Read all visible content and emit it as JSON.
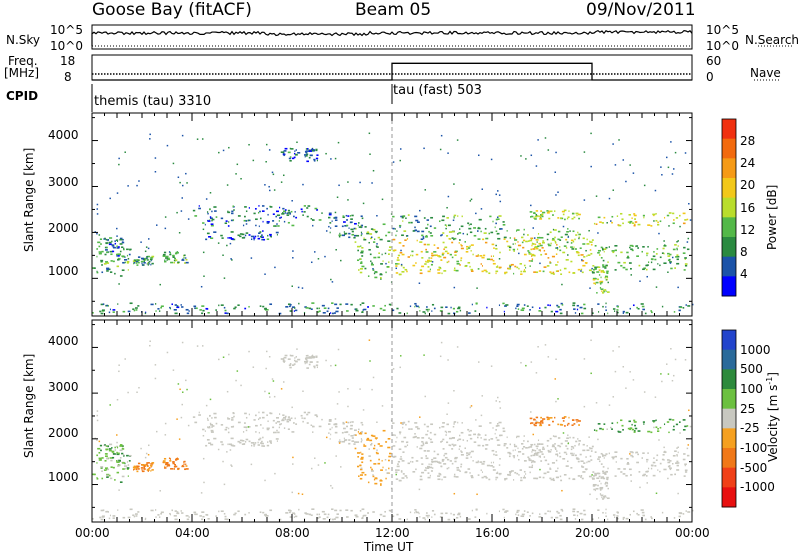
{
  "header": {
    "station": "Goose Bay (fitACF)",
    "beam": "Beam 05",
    "date": "09/Nov/2011"
  },
  "top_panels": {
    "nsky_label": "N.Sky",
    "nsky_ticks": [
      "10^5",
      "10^0"
    ],
    "nsearch_label": "N.Search",
    "nsearch_ticks": [
      "10^5",
      "10^0"
    ],
    "freq_label": "Freq.",
    "freq_unit": "[MHz]",
    "freq_ticks": [
      "18",
      "8"
    ],
    "nave_label": "Nave",
    "nave_ticks": [
      "60",
      "0"
    ],
    "cpid_label": "CPID",
    "cpid_segments": [
      {
        "name": "themis (tau)",
        "id": "3310",
        "start_hour": 0
      },
      {
        "name": "tau (fast)",
        "id": "503",
        "start_hour": 12
      }
    ]
  },
  "panel_power": {
    "ylabel": "Slant Range [km]",
    "yticks": [
      "4000",
      "3000",
      "2000",
      "1000"
    ],
    "colorbar_label": "Power [dB]",
    "colorbar_ticks": [
      "28",
      "24",
      "20",
      "16",
      "12",
      "8",
      "4"
    ],
    "colors": [
      "#0000ff",
      "#1b53a8",
      "#2a8a40",
      "#53b848",
      "#b9dd2c",
      "#f2c81a",
      "#f59a16",
      "#f26a0e",
      "#f03010"
    ]
  },
  "panel_velocity": {
    "ylabel": "Slant Range [km]",
    "yticks": [
      "4000",
      "3000",
      "2000",
      "1000"
    ],
    "colorbar_label": "Velocity [m s^-1]",
    "colorbar_ticks": [
      "1000",
      "500",
      "100",
      "25",
      "-25",
      "-100",
      "-500",
      "-1000"
    ],
    "colors": [
      "#2244cc",
      "#2a6a9a",
      "#2d8a3c",
      "#6cc040",
      "#c8c8c0",
      "#f5a020",
      "#f07818",
      "#f04018",
      "#e81010"
    ]
  },
  "x_axis": {
    "label": "Time UT",
    "ticks": [
      "00:00",
      "04:00",
      "08:00",
      "12:00",
      "16:00",
      "20:00",
      "00:00"
    ]
  },
  "chart_data": {
    "type": "heatmap",
    "title": "Goose Bay (fitACF) Beam 05 09/Nov/2011",
    "xlabel": "Time UT",
    "ylabel": "Slant Range [km]",
    "xlim_hours": [
      0,
      24
    ],
    "ylim_km": [
      180,
      4600
    ],
    "xticks_hours": [
      0,
      4,
      8,
      12,
      16,
      20,
      24
    ],
    "yticks_km": [
      1000,
      2000,
      3000,
      4000
    ],
    "power_colorbar_db": [
      4,
      8,
      12,
      16,
      20,
      24,
      28
    ],
    "velocity_colorbar_ms": [
      1000,
      500,
      100,
      25,
      -25,
      -100,
      -500,
      -1000
    ],
    "cpid": [
      {
        "start_hour": 0,
        "end_hour": 12,
        "id": 3310
      },
      {
        "start_hour": 12,
        "end_hour": 24,
        "id": 503
      }
    ],
    "frequency_mhz_approx": 10,
    "nave": [
      {
        "start_hour": 0,
        "end_hour": 12,
        "value": 0
      },
      {
        "start_hour": 12,
        "end_hour": 20,
        "value": 40
      },
      {
        "start_hour": 20,
        "end_hour": 24,
        "value": 0
      }
    ],
    "echo_regions": [
      {
        "t0": 0.0,
        "t1": 1.5,
        "r0": 1050,
        "r1": 1800,
        "power_db": 10,
        "velocity_ms": 60
      },
      {
        "t0": 0.2,
        "t1": 1.2,
        "r0": 1500,
        "r1": 1900,
        "power_db": 8,
        "velocity_ms": 80
      },
      {
        "t0": 1.6,
        "t1": 2.4,
        "r0": 1300,
        "r1": 1500,
        "power_db": 10,
        "velocity_ms": -120
      },
      {
        "t0": 2.8,
        "t1": 3.8,
        "r0": 1350,
        "r1": 1600,
        "power_db": 10,
        "velocity_ms": -150
      },
      {
        "t0": 4.0,
        "t1": 9.5,
        "r0": 2150,
        "r1": 2600,
        "power_db": 7,
        "velocity_ms": 0
      },
      {
        "t0": 4.5,
        "t1": 7.5,
        "r0": 1850,
        "r1": 2050,
        "power_db": 6,
        "velocity_ms": 0
      },
      {
        "t0": 7.5,
        "t1": 9.0,
        "r0": 3550,
        "r1": 3850,
        "power_db": 6,
        "velocity_ms": 0
      },
      {
        "t0": 9.5,
        "t1": 10.8,
        "r0": 1900,
        "r1": 2400,
        "power_db": 7,
        "velocity_ms": 0
      },
      {
        "t0": 10.5,
        "t1": 11.9,
        "r0": 1000,
        "r1": 2200,
        "power_db": 12,
        "velocity_ms": -40
      },
      {
        "t0": 12.0,
        "t1": 20.0,
        "r0": 1100,
        "r1": 1900,
        "power_db": 18,
        "velocity_ms": 0
      },
      {
        "t0": 12.0,
        "t1": 16.5,
        "r0": 1850,
        "r1": 2400,
        "power_db": 10,
        "velocity_ms": 0
      },
      {
        "t0": 16.5,
        "t1": 19.5,
        "r0": 1650,
        "r1": 2100,
        "power_db": 13,
        "velocity_ms": 0
      },
      {
        "t0": 17.5,
        "t1": 19.5,
        "r0": 2300,
        "r1": 2500,
        "power_db": 16,
        "velocity_ms": -120
      },
      {
        "t0": 20.0,
        "t1": 23.8,
        "r0": 2150,
        "r1": 2450,
        "power_db": 18,
        "velocity_ms": 120
      },
      {
        "t0": 20.0,
        "t1": 23.8,
        "r0": 1200,
        "r1": 1750,
        "power_db": 12,
        "velocity_ms": 0
      },
      {
        "t0": 20.0,
        "t1": 20.6,
        "r0": 700,
        "r1": 1300,
        "power_db": 14,
        "velocity_ms": 0
      },
      {
        "t0": 0.0,
        "t1": 24.0,
        "r0": 250,
        "r1": 480,
        "power_db": 8,
        "velocity_ms": 0
      }
    ]
  }
}
